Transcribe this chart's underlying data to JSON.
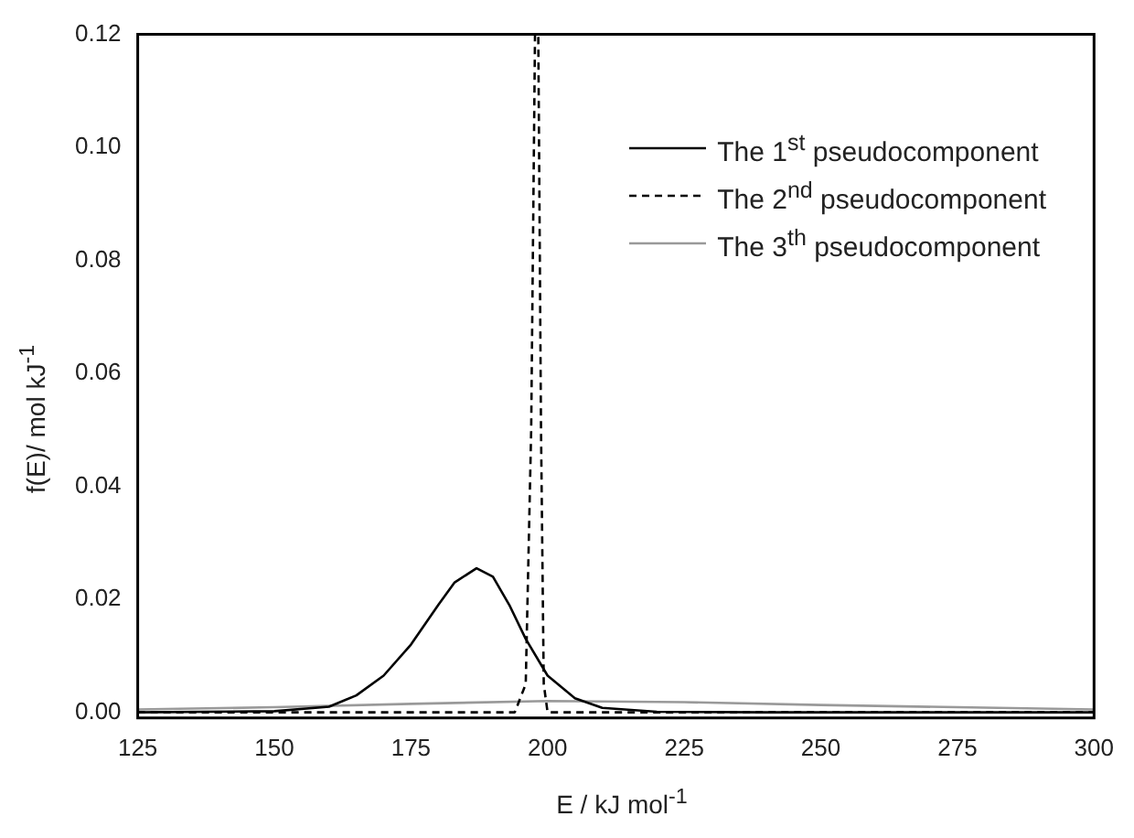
{
  "chart_data": {
    "type": "line",
    "xlabel": "E / kJ mol$^{-1}$",
    "ylabel": "f(E)/ mol kJ$^{-1}$",
    "xlim": [
      125,
      300
    ],
    "xticks": [
      125,
      150,
      175,
      200,
      225,
      250,
      275,
      300
    ],
    "ylim": [
      -0.001,
      0.12
    ],
    "yticks": [
      {
        "value": 0,
        "label": "0.00"
      },
      0.02,
      0.04,
      0.06,
      0.08,
      {
        "value": 0.1,
        "label": "0.10"
      },
      0.12
    ],
    "grid": false,
    "legend": "top right",
    "marker": "none",
    "series": [
      {
        "name": "The 1$^{st}$ pseudocomponent",
        "color": "#000000",
        "line_style": "solid",
        "x": [
          125,
          150,
          160,
          165,
          170,
          175,
          180,
          183,
          187,
          190,
          193,
          196,
          200,
          205,
          210,
          220,
          240,
          300
        ],
        "values": [
          0,
          0.0002,
          0.001,
          0.003,
          0.0065,
          0.012,
          0.019,
          0.023,
          0.0255,
          0.024,
          0.019,
          0.013,
          0.0065,
          0.0025,
          0.0008,
          0.0001,
          0,
          0
        ]
      },
      {
        "name": "The 2$^{nd}$ pseudocomponent",
        "color": "#000000",
        "line_style": "dashed",
        "x": [
          125,
          194,
          196,
          197,
          197.7,
          198.3,
          198.8,
          199.3,
          200,
          300
        ],
        "values": [
          0,
          0,
          0.005,
          0.05,
          0.12,
          0.12,
          0.05,
          0.005,
          0,
          0
        ]
      },
      {
        "name": "The 3$^{th}$ pseudocomponent",
        "color": "#999999",
        "line_style": "solid",
        "x": [
          125,
          150,
          175,
          200,
          225,
          250,
          275,
          300
        ],
        "values": [
          0.0005,
          0.0009,
          0.0015,
          0.002,
          0.0018,
          0.0013,
          0.0009,
          0.0005
        ]
      }
    ]
  }
}
